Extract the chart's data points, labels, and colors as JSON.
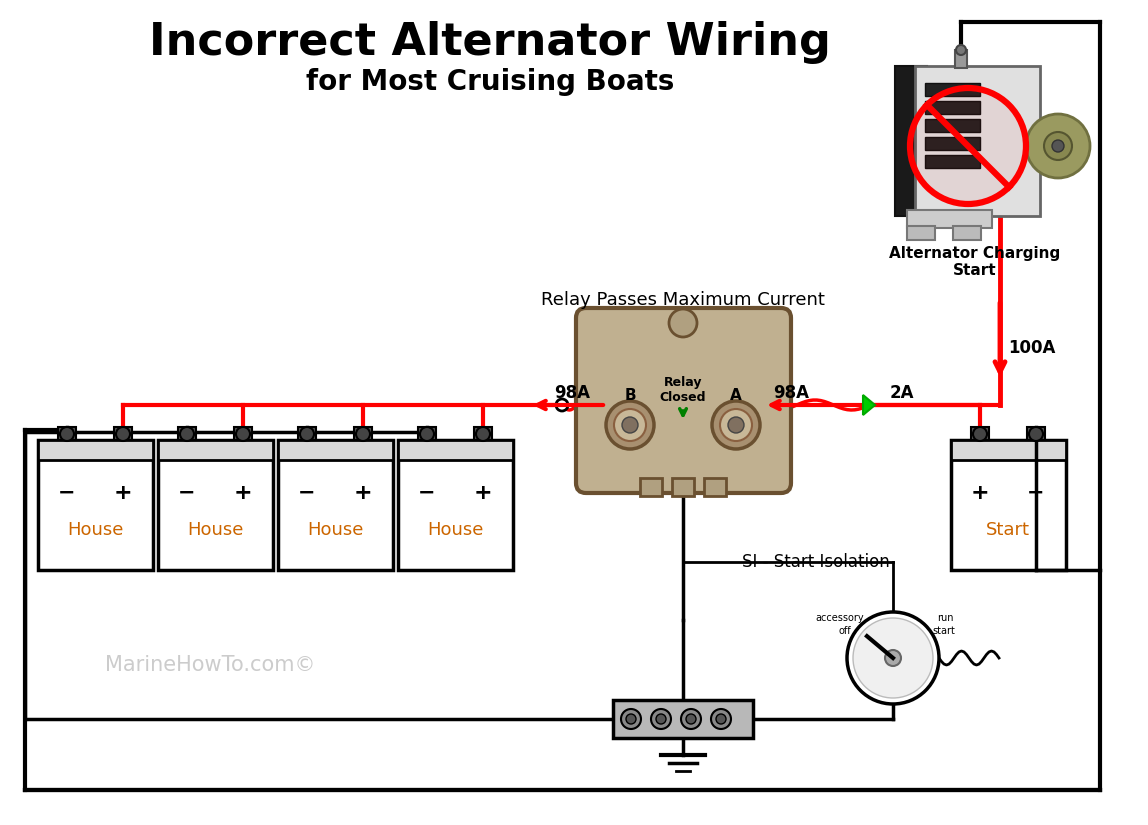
{
  "title": "Incorrect Alternator Wiring",
  "subtitle": "for Most Cruising Boats",
  "watermark": "MarineHowTo.com©",
  "background_color": "#ffffff",
  "title_fontsize": 32,
  "subtitle_fontsize": 20,
  "relay_label": "Relay\nClosed",
  "relay_passes": "Relay Passes Maximum Current",
  "alternator_label": "Alternator Charging\nStart",
  "si_label": "SI - Start Isolation",
  "label_98A_left": "98A",
  "label_98A_right": "98A",
  "label_100A": "100A",
  "label_2A": "2A",
  "label_A": "A",
  "label_B": "B",
  "house_label": "House",
  "start_label": "Start"
}
